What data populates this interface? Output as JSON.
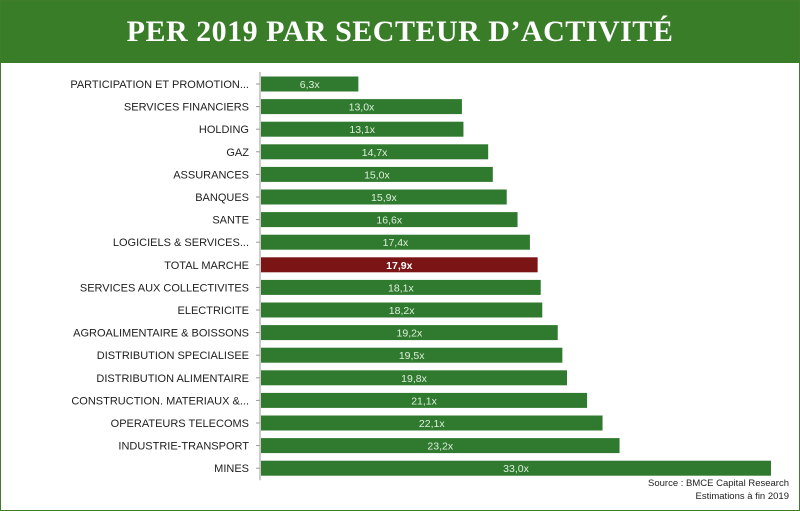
{
  "title": "PER 2019 PAR SECTEUR D’ACTIVITÉ",
  "source_line1": "Source : BMCE Capital Research",
  "source_line2": "Estimations à fin 2019",
  "colors": {
    "header": "#3a7d29",
    "bar": "#2f7a2e",
    "highlight_bar": "#7b1414",
    "bar_text": "#dfeedd"
  },
  "chart_data": {
    "type": "bar",
    "orientation": "horizontal",
    "title": "PER 2019 PAR SECTEUR D’ACTIVITÉ",
    "xlabel": "",
    "ylabel": "",
    "xlim": [
      0,
      33
    ],
    "grid": false,
    "legend": "none",
    "highlight_category": "TOTAL MARCHE",
    "categories": [
      "PARTICIPATION ET PROMOTION...",
      "SERVICES FINANCIERS",
      "HOLDING",
      "GAZ",
      "ASSURANCES",
      "BANQUES",
      "SANTE",
      "LOGICIELS & SERVICES...",
      "TOTAL MARCHE",
      "SERVICES AUX COLLECTIVITES",
      "ELECTRICITE",
      "AGROALIMENTAIRE & BOISSONS",
      "DISTRIBUTION SPECIALISEE",
      "DISTRIBUTION ALIMENTAIRE",
      "CONSTRUCTION. MATERIAUX &...",
      "OPERATEURS TELECOMS",
      "INDUSTRIE-TRANSPORT",
      "MINES"
    ],
    "values": [
      6.3,
      13.0,
      13.1,
      14.7,
      15.0,
      15.9,
      16.6,
      17.4,
      17.9,
      18.1,
      18.2,
      19.2,
      19.5,
      19.8,
      21.1,
      22.1,
      23.2,
      33.0
    ],
    "data_labels": [
      "6,3x",
      "13,0x",
      "13,1x",
      "14,7x",
      "15,0x",
      "15,9x",
      "16,6x",
      "17,4x",
      "17,9x",
      "18,1x",
      "18,2x",
      "19,2x",
      "19,5x",
      "19,8x",
      "21,1x",
      "22,1x",
      "23,2x",
      "33,0x"
    ]
  }
}
